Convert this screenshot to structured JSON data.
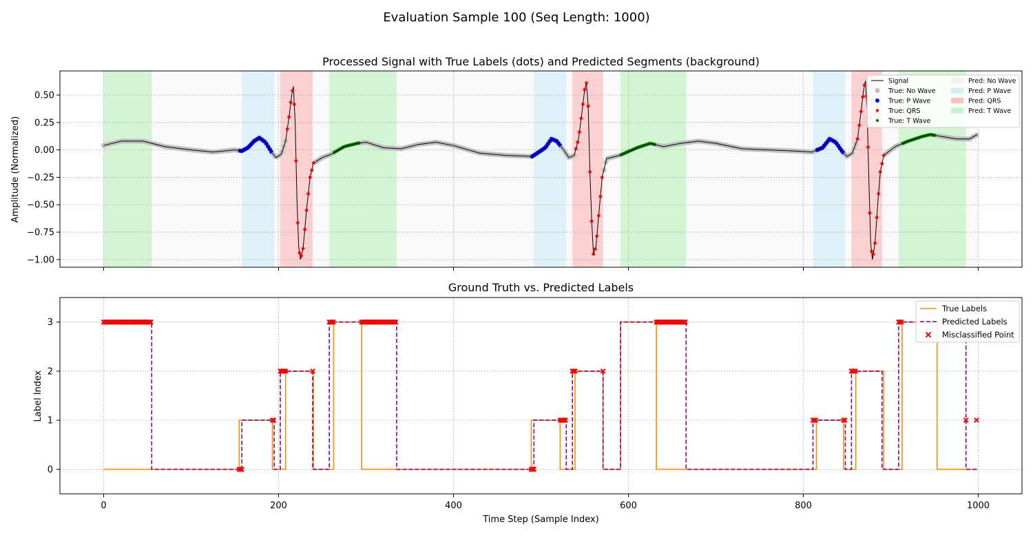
{
  "figure": {
    "suptitle": "Evaluation Sample 100 (Seq Length: 1000)"
  },
  "chart_data": [
    {
      "type": "line",
      "title": "Processed Signal with True Labels (dots) and Predicted Segments (background)",
      "xlabel": "",
      "ylabel": "Amplitude (Normalized)",
      "xlim": [
        -50,
        1050
      ],
      "ylim": [
        -1.07,
        0.72
      ],
      "x_ticks": [
        0,
        200,
        400,
        600,
        800,
        1000
      ],
      "y_ticks": [
        -1.0,
        -0.75,
        -0.5,
        -0.25,
        0.0,
        0.25,
        0.5
      ],
      "y_tick_labels": [
        "−1.00",
        "−0.75",
        "−0.50",
        "−0.25",
        "0.00",
        "0.25",
        "0.50"
      ],
      "grid": true,
      "legend_placement": "top-right",
      "legend": [
        {
          "label": "Signal",
          "kind": "line",
          "color": "#000000"
        },
        {
          "label": "True: No Wave",
          "kind": "dot",
          "color": "#bfbfbf"
        },
        {
          "label": "True: P Wave",
          "kind": "dot",
          "color": "#0000ff"
        },
        {
          "label": "True: QRS",
          "kind": "dot",
          "color": "#ff0000"
        },
        {
          "label": "True: T Wave",
          "kind": "dot",
          "color": "#008000"
        },
        {
          "label": "Pred: No Wave",
          "kind": "patch",
          "color": "#f2f2f2"
        },
        {
          "label": "Pred: P Wave",
          "kind": "patch",
          "color": "#d4ecf5"
        },
        {
          "label": "Pred: QRS",
          "kind": "patch",
          "color": "#f8c0c0"
        },
        {
          "label": "Pred: T Wave",
          "kind": "patch",
          "color": "#c6f2c6"
        }
      ],
      "class_colors": {
        "true": [
          "#bfbfbf",
          "#0000ff",
          "#ff0000",
          "#008000"
        ],
        "pred": [
          "#f2f2f2",
          "#d4ecf5",
          "#f8c0c0",
          "#c6f2c6"
        ]
      },
      "pred_segments": [
        {
          "start": 0,
          "end": 55,
          "label": 3
        },
        {
          "start": 55,
          "end": 158,
          "label": 0
        },
        {
          "start": 158,
          "end": 195,
          "label": 1
        },
        {
          "start": 195,
          "end": 202,
          "label": 0
        },
        {
          "start": 202,
          "end": 239,
          "label": 2
        },
        {
          "start": 239,
          "end": 258,
          "label": 0
        },
        {
          "start": 258,
          "end": 335,
          "label": 3
        },
        {
          "start": 335,
          "end": 492,
          "label": 0
        },
        {
          "start": 492,
          "end": 529,
          "label": 1
        },
        {
          "start": 529,
          "end": 536,
          "label": 0
        },
        {
          "start": 536,
          "end": 571,
          "label": 2
        },
        {
          "start": 571,
          "end": 591,
          "label": 0
        },
        {
          "start": 591,
          "end": 666,
          "label": 3
        },
        {
          "start": 666,
          "end": 811,
          "label": 0
        },
        {
          "start": 811,
          "end": 848,
          "label": 1
        },
        {
          "start": 848,
          "end": 855,
          "label": 0
        },
        {
          "start": 855,
          "end": 890,
          "label": 2
        },
        {
          "start": 890,
          "end": 909,
          "label": 0
        },
        {
          "start": 909,
          "end": 986,
          "label": 3
        },
        {
          "start": 986,
          "end": 999,
          "label": 0
        }
      ],
      "signal_knots": [
        [
          0,
          0.04
        ],
        [
          20,
          0.08
        ],
        [
          45,
          0.08
        ],
        [
          70,
          0.03
        ],
        [
          100,
          0.0
        ],
        [
          125,
          -0.02
        ],
        [
          150,
          0.0
        ],
        [
          158,
          -0.01
        ],
        [
          165,
          0.02
        ],
        [
          172,
          0.08
        ],
        [
          178,
          0.11
        ],
        [
          185,
          0.07
        ],
        [
          192,
          -0.02
        ],
        [
          197,
          -0.07
        ],
        [
          203,
          -0.04
        ],
        [
          208,
          0.08
        ],
        [
          212,
          0.3
        ],
        [
          215,
          0.5
        ],
        [
          217,
          0.58
        ],
        [
          219,
          0.25
        ],
        [
          221,
          -0.45
        ],
        [
          223,
          -0.88
        ],
        [
          225,
          -1.0
        ],
        [
          228,
          -0.9
        ],
        [
          232,
          -0.55
        ],
        [
          236,
          -0.25
        ],
        [
          240,
          -0.12
        ],
        [
          250,
          -0.07
        ],
        [
          260,
          -0.04
        ],
        [
          275,
          0.03
        ],
        [
          290,
          0.06
        ],
        [
          300,
          0.07
        ],
        [
          320,
          0.02
        ],
        [
          340,
          0.01
        ],
        [
          360,
          0.05
        ],
        [
          380,
          0.07
        ],
        [
          400,
          0.04
        ],
        [
          430,
          -0.03
        ],
        [
          460,
          -0.05
        ],
        [
          490,
          -0.06
        ],
        [
          505,
          0.02
        ],
        [
          512,
          0.1
        ],
        [
          518,
          0.08
        ],
        [
          525,
          0.01
        ],
        [
          532,
          -0.07
        ],
        [
          538,
          -0.05
        ],
        [
          543,
          0.1
        ],
        [
          547,
          0.35
        ],
        [
          550,
          0.55
        ],
        [
          552,
          0.61
        ],
        [
          554,
          0.4
        ],
        [
          556,
          -0.2
        ],
        [
          558,
          -0.65
        ],
        [
          560,
          -0.95
        ],
        [
          563,
          -0.88
        ],
        [
          566,
          -0.6
        ],
        [
          570,
          -0.25
        ],
        [
          575,
          -0.08
        ],
        [
          590,
          -0.05
        ],
        [
          610,
          0.02
        ],
        [
          625,
          0.06
        ],
        [
          640,
          0.03
        ],
        [
          660,
          0.06
        ],
        [
          680,
          0.08
        ],
        [
          700,
          0.06
        ],
        [
          730,
          0.01
        ],
        [
          760,
          0.0
        ],
        [
          790,
          -0.01
        ],
        [
          810,
          -0.02
        ],
        [
          822,
          0.02
        ],
        [
          830,
          0.1
        ],
        [
          837,
          0.07
        ],
        [
          845,
          -0.02
        ],
        [
          850,
          -0.06
        ],
        [
          856,
          -0.03
        ],
        [
          862,
          0.1
        ],
        [
          866,
          0.35
        ],
        [
          869,
          0.55
        ],
        [
          871,
          0.63
        ],
        [
          873,
          0.35
        ],
        [
          875,
          -0.3
        ],
        [
          877,
          -0.85
        ],
        [
          879,
          -1.0
        ],
        [
          882,
          -0.85
        ],
        [
          885,
          -0.5
        ],
        [
          888,
          -0.2
        ],
        [
          892,
          -0.05
        ],
        [
          905,
          0.03
        ],
        [
          920,
          0.08
        ],
        [
          935,
          0.12
        ],
        [
          945,
          0.14
        ],
        [
          960,
          0.12
        ],
        [
          975,
          0.1
        ],
        [
          990,
          0.1
        ],
        [
          999,
          0.14
        ]
      ],
      "true_label_segments": [
        {
          "start": 0,
          "end": 155,
          "label": 0
        },
        {
          "start": 155,
          "end": 193,
          "label": 1
        },
        {
          "start": 193,
          "end": 208,
          "label": 0
        },
        {
          "start": 208,
          "end": 240,
          "label": 2
        },
        {
          "start": 240,
          "end": 263,
          "label": 0
        },
        {
          "start": 263,
          "end": 295,
          "label": 3
        },
        {
          "start": 295,
          "end": 489,
          "label": 0
        },
        {
          "start": 489,
          "end": 522,
          "label": 1
        },
        {
          "start": 522,
          "end": 539,
          "label": 0
        },
        {
          "start": 539,
          "end": 571,
          "label": 2
        },
        {
          "start": 571,
          "end": 591,
          "label": 0
        },
        {
          "start": 591,
          "end": 632,
          "label": 3
        },
        {
          "start": 632,
          "end": 815,
          "label": 0
        },
        {
          "start": 815,
          "end": 846,
          "label": 1
        },
        {
          "start": 846,
          "end": 860,
          "label": 0
        },
        {
          "start": 860,
          "end": 892,
          "label": 2
        },
        {
          "start": 892,
          "end": 913,
          "label": 0
        },
        {
          "start": 913,
          "end": 953,
          "label": 3
        },
        {
          "start": 953,
          "end": 999,
          "label": 0
        }
      ]
    },
    {
      "type": "line",
      "title": "Ground Truth vs. Predicted Labels",
      "xlabel": "Time Step (Sample Index)",
      "ylabel": "Label Index",
      "xlim": [
        -50,
        1050
      ],
      "ylim": [
        -0.5,
        3.5
      ],
      "x_ticks": [
        0,
        200,
        400,
        600,
        800,
        1000
      ],
      "y_ticks": [
        0,
        1,
        2,
        3
      ],
      "grid": true,
      "legend_placement": "top-right",
      "legend": [
        {
          "label": "True Labels",
          "kind": "line",
          "color": "#ff8c00"
        },
        {
          "label": "Predicted Labels",
          "kind": "dashed",
          "color": "#800080"
        },
        {
          "label": "Misclassified Point",
          "kind": "x",
          "color": "#ff0000"
        }
      ],
      "series": [
        {
          "name": "True Labels",
          "color": "#ff8c00",
          "steps": [
            [
              0,
              0
            ],
            [
              155,
              1
            ],
            [
              193,
              0
            ],
            [
              208,
              2
            ],
            [
              240,
              0
            ],
            [
              263,
              3
            ],
            [
              295,
              0
            ],
            [
              489,
              1
            ],
            [
              522,
              0
            ],
            [
              539,
              2
            ],
            [
              571,
              0
            ],
            [
              591,
              3
            ],
            [
              632,
              0
            ],
            [
              815,
              1
            ],
            [
              846,
              0
            ],
            [
              860,
              2
            ],
            [
              892,
              0
            ],
            [
              913,
              3
            ],
            [
              953,
              0
            ],
            [
              999,
              0
            ]
          ]
        },
        {
          "name": "Predicted Labels",
          "color": "#800080",
          "steps": [
            [
              0,
              3
            ],
            [
              55,
              0
            ],
            [
              158,
              1
            ],
            [
              195,
              0
            ],
            [
              202,
              2
            ],
            [
              239,
              0
            ],
            [
              258,
              3
            ],
            [
              335,
              0
            ],
            [
              492,
              1
            ],
            [
              529,
              0
            ],
            [
              536,
              2
            ],
            [
              571,
              0
            ],
            [
              591,
              3
            ],
            [
              666,
              0
            ],
            [
              811,
              1
            ],
            [
              848,
              0
            ],
            [
              855,
              2
            ],
            [
              890,
              0
            ],
            [
              909,
              3
            ],
            [
              986,
              0
            ],
            [
              999,
              0
            ]
          ]
        },
        {
          "name": "Misclassified Point",
          "color": "#ff0000",
          "ranges": [
            {
              "start": 0,
              "end": 55,
              "value": 3
            },
            {
              "start": 155,
              "end": 158,
              "value": 0
            },
            {
              "start": 193,
              "end": 195,
              "value": 1
            },
            {
              "start": 202,
              "end": 208,
              "value": 2
            },
            {
              "start": 239,
              "end": 240,
              "value": 2
            },
            {
              "start": 258,
              "end": 263,
              "value": 3
            },
            {
              "start": 295,
              "end": 335,
              "value": 3
            },
            {
              "start": 489,
              "end": 492,
              "value": 0
            },
            {
              "start": 522,
              "end": 529,
              "value": 1
            },
            {
              "start": 536,
              "end": 539,
              "value": 2
            },
            {
              "start": 571,
              "end": 571,
              "value": 2
            },
            {
              "start": 632,
              "end": 666,
              "value": 3
            },
            {
              "start": 811,
              "end": 815,
              "value": 1
            },
            {
              "start": 846,
              "end": 848,
              "value": 1
            },
            {
              "start": 855,
              "end": 860,
              "value": 2
            },
            {
              "start": 909,
              "end": 913,
              "value": 3
            },
            {
              "start": 986,
              "end": 986,
              "value": 1
            },
            {
              "start": 998,
              "end": 999,
              "value": 1
            }
          ]
        }
      ]
    }
  ]
}
